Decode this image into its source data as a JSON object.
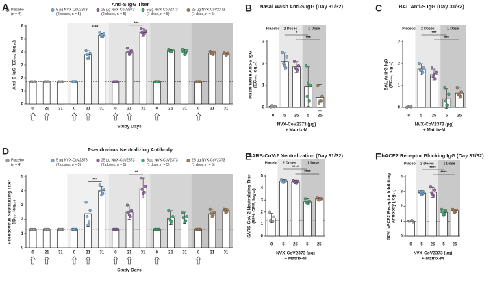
{
  "chart_data": [
    {
      "type": "bar",
      "panel": "A",
      "title": "Anti-S IgG Titer",
      "ylabel": [
        "Anti-S IgG (EC₅₀, log₁₀)"
      ],
      "xlabel": [
        "Study Days"
      ],
      "groups": [
        {
          "name": [
            "Placebo",
            "(n = 4)"
          ],
          "color": "#9e9e9e",
          "shade": "#ffffff"
        },
        {
          "name": [
            "5 µg NVX-CoV2373",
            "(2 doses, n = 5)"
          ],
          "color": "#6fa8dc",
          "shade": "#f0f0f0"
        },
        {
          "name": [
            "25 µg NVX-CoV2373",
            "(2 doses, n = 5)"
          ],
          "color": "#8e5ea2",
          "shade": "#e4e4e4"
        },
        {
          "name": [
            "5 µg NVX-CoV2373",
            "(1 dose, n = 5)"
          ],
          "color": "#3aa76d",
          "shade": "#d5d5d5"
        },
        {
          "name": [
            "25 µg NVX-CoV2373",
            "(1 dose, n = 5)"
          ],
          "color": "#a67c52",
          "shade": "#c4c4c4"
        }
      ],
      "categories": [
        "0",
        "21",
        "31",
        "0",
        "21",
        "31",
        "0",
        "21",
        "31",
        "0",
        "21",
        "31",
        "0",
        "21",
        "31"
      ],
      "values": [
        1.7,
        1.7,
        1.7,
        1.7,
        3.8,
        5.3,
        1.7,
        4.0,
        5.5,
        1.7,
        4.1,
        4.0,
        1.7,
        3.9,
        3.85
      ],
      "errors": [
        0,
        0,
        0,
        0,
        0.3,
        0.15,
        0,
        0.25,
        0.3,
        0,
        0.1,
        0.2,
        0,
        0.15,
        0.1
      ],
      "points": [
        [
          1.7,
          1.7,
          1.7,
          1.7
        ],
        [
          1.7,
          1.7,
          1.7,
          1.7
        ],
        [
          1.7,
          1.7,
          1.7,
          1.7
        ],
        [
          1.7,
          1.7,
          1.7,
          1.7,
          1.7
        ],
        [
          4.1,
          3.9,
          3.8,
          3.6,
          3.5
        ],
        [
          5.5,
          5.4,
          5.3,
          5.2,
          5.3
        ],
        [
          1.7,
          1.7,
          1.7,
          1.7,
          1.7
        ],
        [
          4.3,
          4.1,
          4.0,
          3.9,
          3.8
        ],
        [
          5.8,
          5.6,
          5.5,
          5.4,
          5.3
        ],
        [
          1.7,
          1.7,
          1.7,
          1.7,
          1.7
        ],
        [
          4.2,
          4.15,
          4.1,
          4.05,
          4.0
        ],
        [
          4.2,
          4.1,
          4.0,
          3.9,
          3.8
        ],
        [
          1.7,
          1.7,
          1.7,
          1.7,
          1.7
        ],
        [
          4.05,
          4.0,
          3.9,
          3.8,
          3.85
        ],
        [
          3.95,
          3.9,
          3.85,
          3.8,
          3.75
        ]
      ],
      "reference": 1.7,
      "significance": [
        {
          "label": "****",
          "bars": [
            4,
            5
          ]
        },
        {
          "label": "***",
          "bars": [
            7,
            8
          ]
        }
      ],
      "ylim": [
        0,
        6
      ],
      "yticks": [
        0,
        1,
        2,
        3,
        4,
        5,
        6
      ]
    },
    {
      "type": "bar",
      "panel": "B",
      "title": "Nasal Wash Anti-S IgG (Day 31/32)",
      "ylabel": [
        "Nasal Wash Anti-S IgG",
        "(EC₅₀, log₁₀)"
      ],
      "xlabel": [
        "NVX-CoV2373 (µg)",
        "+ Matrix-M"
      ],
      "headers": [
        {
          "label": "Placebo",
          "bars": [
            0,
            0
          ]
        },
        {
          "label": "2 Doses",
          "bars": [
            1,
            2
          ],
          "shade": "#e8e8e8"
        },
        {
          "label": "1 Dose",
          "bars": [
            3,
            4
          ],
          "shade": "#c9c9c9"
        }
      ],
      "categories": [
        "0",
        "5",
        "25",
        "5",
        "25"
      ],
      "colors": [
        "#9e9e9e",
        "#6fa8dc",
        "#8e5ea2",
        "#3aa76d",
        "#a67c52"
      ],
      "values": [
        0.05,
        2.1,
        1.85,
        0.95,
        0.45
      ],
      "errors": [
        0.05,
        0.4,
        0.25,
        0.9,
        0.6
      ],
      "points": [
        [
          0.02,
          0.05,
          0.08,
          0.03
        ],
        [
          2.5,
          2.3,
          2.0,
          1.8,
          1.9
        ],
        [
          2.1,
          1.9,
          1.8,
          1.7,
          1.75
        ],
        [
          1.9,
          1.0,
          0.5,
          0.3,
          1.1
        ],
        [
          1.0,
          0.5,
          0.2,
          0.3,
          0.3
        ]
      ],
      "reference": 0,
      "significance": [
        {
          "label": "*",
          "bars": [
            1,
            3
          ]
        },
        {
          "label": "***",
          "bars": [
            2,
            4
          ]
        }
      ],
      "ylim": [
        0,
        3
      ],
      "yticks": [
        0,
        1,
        2,
        3
      ]
    },
    {
      "type": "bar",
      "panel": "C",
      "title": "BAL Anti-S IgG (Day 31/32)",
      "ylabel": [
        "BAL Anti-S IgG",
        "(EC₅₀, log₁₀)"
      ],
      "xlabel": [
        "NVX-CoV2373 (µg)",
        "+ Matrix-M"
      ],
      "headers": [
        {
          "label": "Placebo",
          "bars": [
            0,
            0
          ]
        },
        {
          "label": "2 Doses",
          "bars": [
            1,
            2
          ],
          "shade": "#e8e8e8"
        },
        {
          "label": "1 Dose",
          "bars": [
            3,
            4
          ],
          "shade": "#c9c9c9"
        }
      ],
      "categories": [
        "0",
        "5",
        "25",
        "5",
        "25"
      ],
      "colors": [
        "#9e9e9e",
        "#6fa8dc",
        "#8e5ea2",
        "#3aa76d",
        "#a67c52"
      ],
      "values": [
        0.02,
        1.75,
        1.5,
        0.4,
        0.65
      ],
      "errors": [
        0.03,
        0.25,
        0.25,
        0.45,
        0.25
      ],
      "points": [
        [
          0,
          0.02,
          0.03,
          0.04
        ],
        [
          2.0,
          1.8,
          1.7,
          1.6,
          1.7
        ],
        [
          1.8,
          1.6,
          1.4,
          1.3,
          1.5
        ],
        [
          0.9,
          0.6,
          0.3,
          0.1,
          0.1
        ],
        [
          0.9,
          0.7,
          0.6,
          0.5,
          0.55
        ]
      ],
      "reference": 0,
      "significance": [
        {
          "label": "***",
          "bars": [
            1,
            3
          ]
        },
        {
          "label": "***",
          "bars": [
            2,
            4
          ]
        }
      ],
      "ylim": [
        0,
        3
      ],
      "yticks": [
        0,
        1,
        2,
        3
      ]
    },
    {
      "type": "bar",
      "panel": "D",
      "title": "Pseudovirus Neutralizing Antibody",
      "ylabel": [
        "Pseudovirus Neutralizing Titer",
        "(ID₅₀, log₁₀)"
      ],
      "xlabel": [
        "Study Days"
      ],
      "groups": [
        {
          "name": [
            "Placebo",
            "(n = 4)"
          ],
          "color": "#9e9e9e",
          "shade": "#ffffff"
        },
        {
          "name": [
            "5 µg NVX-CoV2373",
            "(2 doses, n = 5)"
          ],
          "color": "#6fa8dc",
          "shade": "#f0f0f0"
        },
        {
          "name": [
            "25 µg NVX-CoV2373",
            "(2 doses, n = 5)"
          ],
          "color": "#8e5ea2",
          "shade": "#e4e4e4"
        },
        {
          "name": [
            "5 µg NVX-CoV2373",
            "(1 dose, n = 5)"
          ],
          "color": "#3aa76d",
          "shade": "#d5d5d5"
        },
        {
          "name": [
            "25 µg NVX-CoV2373",
            "(1 dose, n = 5)"
          ],
          "color": "#a67c52",
          "shade": "#c4c4c4"
        }
      ],
      "categories": [
        "0",
        "21",
        "31",
        "0",
        "21",
        "31",
        "0",
        "21",
        "31",
        "0",
        "21",
        "31",
        "0",
        "21",
        "31"
      ],
      "values": [
        1.3,
        1.3,
        1.3,
        1.3,
        2.4,
        4.0,
        1.3,
        2.5,
        4.2,
        1.3,
        2.1,
        2.1,
        1.3,
        2.4,
        2.6
      ],
      "errors": [
        0,
        0,
        0,
        0,
        0.9,
        0.3,
        0,
        0.5,
        0.7,
        0,
        0.5,
        0.4,
        0,
        0.3,
        0.15
      ],
      "points": [
        [
          1.3,
          1.3,
          1.3,
          1.3
        ],
        [
          1.3,
          1.3,
          1.3,
          1.3
        ],
        [
          1.3,
          1.3,
          1.3,
          1.3
        ],
        [
          1.3,
          1.3,
          1.3,
          1.3,
          1.3
        ],
        [
          3.2,
          2.6,
          2.2,
          1.8,
          1.6
        ],
        [
          4.4,
          4.1,
          4.0,
          3.8,
          3.7
        ],
        [
          1.3,
          1.3,
          1.3,
          1.3,
          1.3
        ],
        [
          3.0,
          2.6,
          2.5,
          2.2,
          2.3
        ],
        [
          4.9,
          4.3,
          4.1,
          3.9,
          3.8
        ],
        [
          1.3,
          1.3,
          1.3,
          1.3,
          1.3
        ],
        [
          2.6,
          2.2,
          2.0,
          1.8,
          1.9
        ],
        [
          2.5,
          2.2,
          2.1,
          1.9,
          1.8
        ],
        [
          1.3,
          1.3,
          1.3,
          1.3,
          1.3
        ],
        [
          2.7,
          2.5,
          2.4,
          2.3,
          2.2
        ],
        [
          2.7,
          2.65,
          2.6,
          2.55,
          2.5
        ]
      ],
      "reference": 1.3,
      "significance": [
        {
          "label": "***",
          "bars": [
            4,
            5
          ]
        },
        {
          "label": "**",
          "bars": [
            7,
            8
          ]
        }
      ],
      "ylim": [
        0,
        5
      ],
      "yticks": [
        0,
        1,
        2,
        3,
        4,
        5
      ]
    },
    {
      "type": "bar",
      "panel": "E",
      "title": "SARS-CoV-2 Neutralization (Day 31/32)",
      "ylabel": [
        "SARS-CoV-2 Neutralizing Titer",
        "(99% CPE, log₁₀)"
      ],
      "xlabel": [
        "NVX-CoV2373 (µg)",
        "+ Matrix-M"
      ],
      "headers": [
        {
          "label": "Placebo",
          "bars": [
            0,
            0
          ]
        },
        {
          "label": "2 Doses",
          "bars": [
            1,
            2
          ],
          "shade": "#e8e8e8"
        },
        {
          "label": "1 Dose",
          "bars": [
            3,
            4
          ],
          "shade": "#c9c9c9"
        }
      ],
      "categories": [
        "0",
        "5",
        "25",
        "5",
        "25"
      ],
      "colors": [
        "#9e9e9e",
        "#6fa8dc",
        "#8e5ea2",
        "#3aa76d",
        "#a67c52"
      ],
      "values": [
        1.5,
        4.55,
        4.5,
        2.85,
        3.1
      ],
      "errors": [
        0.4,
        0.15,
        0.15,
        0.25,
        0.1
      ],
      "points": [
        [
          2.0,
          1.6,
          1.3,
          1.2
        ],
        [
          4.7,
          4.6,
          4.5,
          4.5,
          4.45
        ],
        [
          4.6,
          4.55,
          4.5,
          4.4,
          4.45
        ],
        [
          3.1,
          2.9,
          2.8,
          2.7,
          2.75
        ],
        [
          3.2,
          3.1,
          3.05,
          3.1,
          3.0
        ]
      ],
      "reference": 1.3,
      "significance": [
        {
          "label": "****",
          "bars": [
            1,
            3
          ]
        },
        {
          "label": "****",
          "bars": [
            2,
            4
          ]
        }
      ],
      "ylim": [
        0,
        5
      ],
      "yticks": [
        0,
        1,
        2,
        3,
        4,
        5
      ]
    },
    {
      "type": "bar",
      "panel": "F",
      "title": "hACE2 Receptor Blocking IgG (Day 31/32)",
      "ylabel": [
        "50% hACE2 Receptor Inhibiting",
        "Antibody (log₁₀)"
      ],
      "xlabel": [
        "NVX-CoV2373 (µg)",
        "+ Matrix-M"
      ],
      "headers": [
        {
          "label": "Placebo",
          "bars": [
            0,
            0
          ]
        },
        {
          "label": "2 Doses",
          "bars": [
            1,
            2
          ],
          "shade": "#e8e8e8"
        },
        {
          "label": "1 Dose",
          "bars": [
            3,
            4
          ],
          "shade": "#c9c9c9"
        }
      ],
      "categories": [
        "0",
        "5",
        "25",
        "5",
        "25"
      ],
      "colors": [
        "#9e9e9e",
        "#6fa8dc",
        "#8e5ea2",
        "#3aa76d",
        "#a67c52"
      ],
      "values": [
        1.0,
        2.9,
        2.95,
        1.6,
        1.7
      ],
      "errors": [
        0.05,
        0.15,
        0.35,
        0.2,
        0.12
      ],
      "points": [
        [
          1.0,
          0.95,
          1.0,
          1.05
        ],
        [
          3.0,
          2.95,
          2.9,
          2.85,
          2.8
        ],
        [
          3.3,
          3.1,
          2.9,
          2.7,
          2.8
        ],
        [
          1.8,
          1.7,
          1.6,
          1.5,
          1.4
        ],
        [
          1.8,
          1.75,
          1.7,
          1.65,
          1.6
        ]
      ],
      "reference": 1.0,
      "significance": [
        {
          "label": "****",
          "bars": [
            1,
            3
          ]
        },
        {
          "label": "****",
          "bars": [
            2,
            4
          ]
        }
      ],
      "ylim": [
        0,
        4
      ],
      "yticks": [
        0,
        1,
        2,
        3,
        4
      ]
    }
  ]
}
